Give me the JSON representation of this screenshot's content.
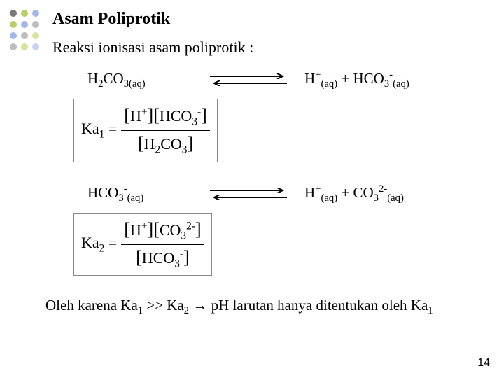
{
  "dots": {
    "colors": [
      [
        "#7a7a7a",
        "#b8cf6a",
        "#a3b8e8"
      ],
      [
        "#b8cf6a",
        "#a3b8e8",
        "#bdbdbd"
      ],
      [
        "#a3b8e8",
        "#bdbdbd",
        "#d6e39b"
      ],
      [
        "#bdbdbd",
        "#d6e39b",
        "#c7d3f0"
      ]
    ]
  },
  "title": "Asam Poliprotik",
  "subtitle": "Reaksi ionisasi asam poliprotik :",
  "reaction1": {
    "lhs_main": "H",
    "lhs_sub1": "2",
    "lhs_mid": "CO",
    "lhs_sub2": "3(aq)",
    "rhs_a_main": "H",
    "rhs_a_sup": "+",
    "rhs_a_sub": "(aq)",
    "plus": " + ",
    "rhs_b_main": "HCO",
    "rhs_b_sub": "3",
    "rhs_b_sup": "-",
    "rhs_b_sub2": "(aq)"
  },
  "ka1": {
    "label_main": "Ka",
    "label_sub": "1",
    "equals": " = ",
    "num_a": "H",
    "num_a_sup": "+",
    "num_b": "HCO",
    "num_b_sub": "3",
    "num_b_sup": "-",
    "den_a": "H",
    "den_a_sub": "2",
    "den_b": "CO",
    "den_b_sub": "3"
  },
  "reaction2": {
    "lhs_main": "HCO",
    "lhs_sub": "3",
    "lhs_sup": "-",
    "lhs_sub2": "(aq)",
    "rhs_a_main": "H",
    "rhs_a_sup": "+",
    "rhs_a_sub": "(aq)",
    "plus": " + ",
    "rhs_b_main": "CO",
    "rhs_b_sub": "3",
    "rhs_b_sup": "2-",
    "rhs_b_sub2": "(aq)"
  },
  "ka2": {
    "label_main": "Ka",
    "label_sub": "2",
    "equals": " = ",
    "num_a": "H",
    "num_a_sup": "+",
    "num_b": "CO",
    "num_b_sub": "3",
    "num_b_sup": "2-",
    "den_a": "HCO",
    "den_a_sub": "3",
    "den_a_sup": "-"
  },
  "conclusion": {
    "p1": "Oleh karena Ka",
    "s1": "1",
    "p2": " >> Ka",
    "s2": "2",
    "arrow": " → ",
    "p3": "pH larutan hanya ditentukan oleh Ka",
    "s3": "1"
  },
  "page_number": "14",
  "arrow_color": "#000000"
}
